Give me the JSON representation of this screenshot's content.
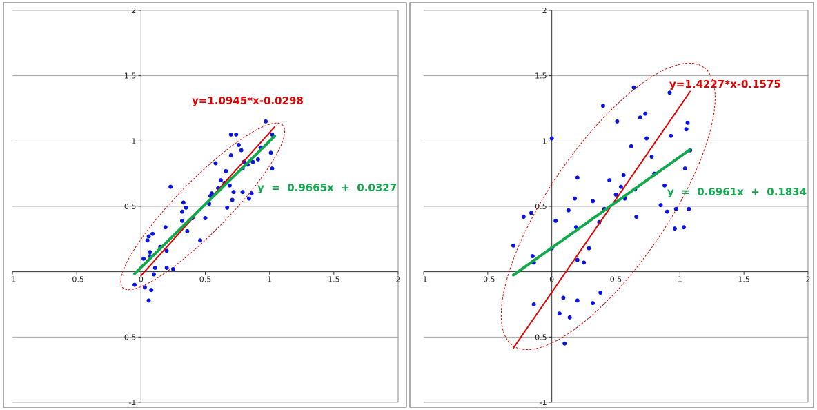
{
  "chart_data": [
    {
      "type": "scatter",
      "xlim": [
        -1,
        2
      ],
      "ylim": [
        -1,
        2
      ],
      "x_ticks": [
        -1,
        -0.5,
        0,
        0.5,
        1,
        1.5,
        2
      ],
      "y_ticks": [
        -1,
        -0.5,
        0.5,
        1,
        1.5,
        2
      ],
      "x_tick_labels": [
        "-1",
        "-0.5",
        "0",
        "0.5",
        "1",
        "1.5",
        "2"
      ],
      "y_tick_labels": [
        "-1",
        "-0.5",
        "0.5",
        "1",
        "1.5",
        "2"
      ],
      "grid": "horizontal",
      "colors": {
        "points": "#0a14e0",
        "red_line": "#e00000",
        "green_line": "#10a84a",
        "ellipse": "#e00000"
      },
      "series": [
        {
          "points": [
            [
              -0.05,
              -0.1
            ],
            [
              0.02,
              0.1
            ],
            [
              0.03,
              -0.12
            ],
            [
              0.05,
              0.24
            ],
            [
              0.06,
              0.27
            ],
            [
              0.06,
              -0.22
            ],
            [
              0.07,
              0.15
            ],
            [
              0.07,
              0.12
            ],
            [
              0.08,
              -0.14
            ],
            [
              0.09,
              0.29
            ],
            [
              0.1,
              -0.02
            ],
            [
              0.11,
              0.03
            ],
            [
              0.15,
              0.19
            ],
            [
              0.19,
              0.34
            ],
            [
              0.2,
              0.16
            ],
            [
              0.2,
              0.03
            ],
            [
              0.23,
              0.65
            ],
            [
              0.25,
              0.02
            ],
            [
              0.32,
              0.39
            ],
            [
              0.32,
              0.46
            ],
            [
              0.33,
              0.53
            ],
            [
              0.35,
              0.49
            ],
            [
              0.36,
              0.31
            ],
            [
              0.4,
              0.41
            ],
            [
              0.46,
              0.24
            ],
            [
              0.5,
              0.41
            ],
            [
              0.53,
              0.52
            ],
            [
              0.54,
              0.58
            ],
            [
              0.55,
              0.6
            ],
            [
              0.58,
              0.83
            ],
            [
              0.6,
              0.64
            ],
            [
              0.62,
              0.7
            ],
            [
              0.65,
              0.68
            ],
            [
              0.66,
              0.77
            ],
            [
              0.67,
              0.49
            ],
            [
              0.69,
              0.66
            ],
            [
              0.7,
              1.05
            ],
            [
              0.7,
              0.89
            ],
            [
              0.71,
              0.55
            ],
            [
              0.72,
              0.61
            ],
            [
              0.74,
              1.05
            ],
            [
              0.76,
              0.97
            ],
            [
              0.78,
              0.93
            ],
            [
              0.79,
              0.61
            ],
            [
              0.79,
              0.79
            ],
            [
              0.8,
              0.84
            ],
            [
              0.83,
              0.82
            ],
            [
              0.84,
              0.56
            ],
            [
              0.86,
              0.6
            ],
            [
              0.87,
              0.84
            ],
            [
              0.91,
              0.86
            ],
            [
              0.93,
              0.95
            ],
            [
              0.97,
              1.15
            ],
            [
              1.01,
              0.91
            ],
            [
              1.02,
              1.05
            ],
            [
              1.02,
              0.79
            ]
          ]
        }
      ],
      "fit_lines": [
        {
          "label": "y=1.0945*x-0.0298",
          "slope": 1.0945,
          "intercept": -0.0298,
          "x_range": [
            0,
            1.04
          ],
          "color": "#e00000"
        },
        {
          "label": "y  =  0.9665x  +  0.0327",
          "slope": 0.9665,
          "intercept": 0.0327,
          "x_range": [
            -0.05,
            1.04
          ],
          "color": "#10a84a"
        }
      ],
      "ellipse": {
        "cx": 0.48,
        "cy": 0.5,
        "rx": 0.88,
        "ry": 0.2,
        "angle_deg": 45
      }
    },
    {
      "type": "scatter",
      "xlim": [
        -1,
        2
      ],
      "ylim": [
        -1,
        2
      ],
      "x_ticks": [
        -1,
        -0.5,
        0,
        0.5,
        1,
        1.5,
        2
      ],
      "y_ticks": [
        -1,
        -0.5,
        0.5,
        1,
        1.5,
        2
      ],
      "x_tick_labels": [
        "-1",
        "-0.5",
        "0",
        "0.5",
        "1",
        "1.5",
        "2"
      ],
      "y_tick_labels": [
        "-1",
        "-0.5",
        "0.5",
        "1",
        "1.5",
        "2"
      ],
      "grid": "horizontal",
      "colors": {
        "points": "#0a14e0",
        "red_line": "#e00000",
        "green_line": "#10a84a",
        "ellipse": "#e00000"
      },
      "series": [
        {
          "points": [
            [
              -0.3,
              0.2
            ],
            [
              -0.22,
              0.42
            ],
            [
              -0.16,
              0.45
            ],
            [
              -0.15,
              0.12
            ],
            [
              -0.14,
              0.07
            ],
            [
              -0.14,
              -0.25
            ],
            [
              0,
              1.02
            ],
            [
              0,
              0.18
            ],
            [
              0.03,
              0.39
            ],
            [
              0.06,
              -0.32
            ],
            [
              0.09,
              -0.2
            ],
            [
              0.1,
              -0.55
            ],
            [
              0.13,
              0.47
            ],
            [
              0.14,
              -0.35
            ],
            [
              0.18,
              0.56
            ],
            [
              0.2,
              0.72
            ],
            [
              0.19,
              0.34
            ],
            [
              0.2,
              0.09
            ],
            [
              0.2,
              -0.22
            ],
            [
              0.25,
              0.07
            ],
            [
              0.29,
              0.18
            ],
            [
              0.32,
              0.54
            ],
            [
              0.32,
              -0.24
            ],
            [
              0.37,
              0.38
            ],
            [
              0.38,
              -0.16
            ],
            [
              0.4,
              1.27
            ],
            [
              0.41,
              0.48
            ],
            [
              0.45,
              0.7
            ],
            [
              0.5,
              0.59
            ],
            [
              0.51,
              1.15
            ],
            [
              0.54,
              0.65
            ],
            [
              0.57,
              0.56
            ],
            [
              0.56,
              0.74
            ],
            [
              0.62,
              0.96
            ],
            [
              0.64,
              1.41
            ],
            [
              0.65,
              0.63
            ],
            [
              0.66,
              0.42
            ],
            [
              0.69,
              1.18
            ],
            [
              0.73,
              1.21
            ],
            [
              0.74,
              1.02
            ],
            [
              0.78,
              0.88
            ],
            [
              0.8,
              0.75
            ],
            [
              0.85,
              0.51
            ],
            [
              0.88,
              0.66
            ],
            [
              0.9,
              0.46
            ],
            [
              0.92,
              1.37
            ],
            [
              0.93,
              1.04
            ],
            [
              0.96,
              0.33
            ],
            [
              0.97,
              0.48
            ],
            [
              1.03,
              0.34
            ],
            [
              1.04,
              0.79
            ],
            [
              1.05,
              1.09
            ],
            [
              1.06,
              1.14
            ],
            [
              1.07,
              0.48
            ],
            [
              1.08,
              0.93
            ]
          ]
        }
      ],
      "fit_lines": [
        {
          "label": "y=1.4227*x-0.1575",
          "slope": 1.4227,
          "intercept": -0.1575,
          "x_range": [
            -0.3,
            1.08
          ],
          "color": "#e00000"
        },
        {
          "label": "y  =  0.6961x  +  0.1834",
          "slope": 0.6961,
          "intercept": 0.1834,
          "x_range": [
            -0.3,
            1.08
          ],
          "color": "#10a84a"
        }
      ],
      "ellipse": {
        "cx": 0.44,
        "cy": 0.5,
        "rx": 1.3,
        "ry": 0.46,
        "angle_deg": 55
      }
    }
  ]
}
